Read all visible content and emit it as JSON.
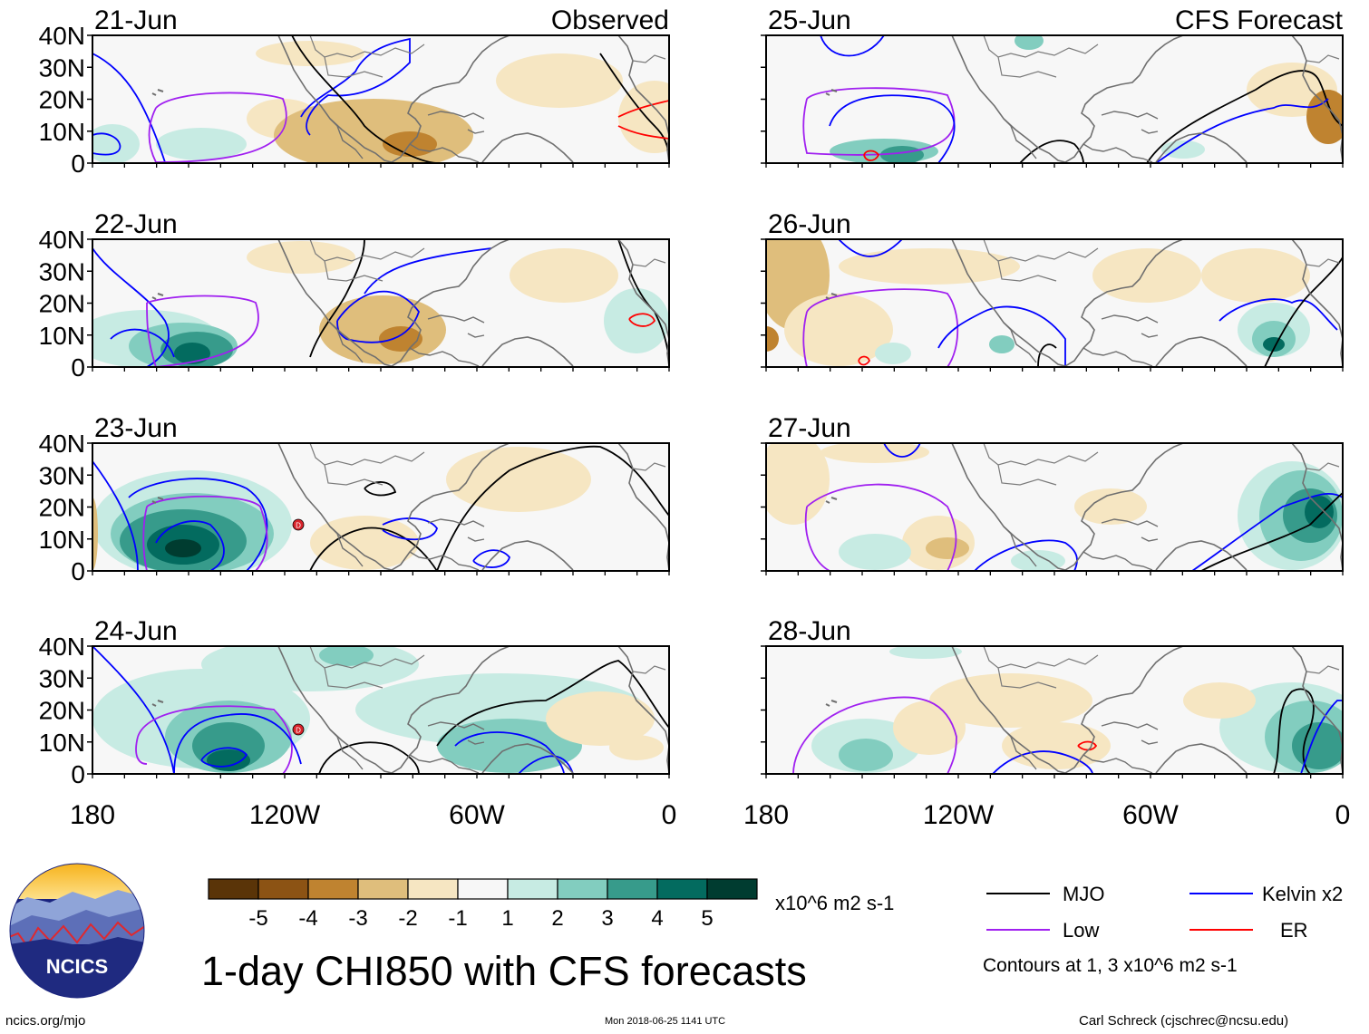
{
  "panels": [
    {
      "date": "21-Jun",
      "label": "Observed"
    },
    {
      "date": "25-Jun",
      "label": "CFS Forecast"
    },
    {
      "date": "22-Jun",
      "label": ""
    },
    {
      "date": "26-Jun",
      "label": ""
    },
    {
      "date": "23-Jun",
      "label": ""
    },
    {
      "date": "27-Jun",
      "label": ""
    },
    {
      "date": "24-Jun",
      "label": ""
    },
    {
      "date": "28-Jun",
      "label": ""
    }
  ],
  "lat_ticks": [
    "40N",
    "30N",
    "20N",
    "10N",
    "0"
  ],
  "lon_ticks": [
    "180",
    "120W",
    "60W",
    "0"
  ],
  "colorbar": {
    "colors": [
      "#5a3408",
      "#8c5314",
      "#bf8330",
      "#dfbe7c",
      "#f6e6c2",
      "#f7f7f7",
      "#c7ebe3",
      "#82cdbf",
      "#379b8b",
      "#036b5f",
      "#003c30"
    ],
    "tick_labels": [
      "-5",
      "-4",
      "-3",
      "-2",
      "-1",
      "1",
      "2",
      "3",
      "4",
      "5"
    ],
    "units": "x10^6 m2 s-1"
  },
  "contour_legend": [
    {
      "label": "MJO",
      "color": "#000000"
    },
    {
      "label": "Kelvin x2",
      "color": "#0000ff"
    },
    {
      "label": "Low",
      "color": "#a020f0"
    },
    {
      "label": "ER",
      "color": "#ff0000"
    }
  ],
  "contours_note": "Contours at 1, 3 x10^6 m2 s-1",
  "title": "1-day CHI850 with CFS forecasts",
  "logo_text": "NCICS",
  "footer": {
    "url": "ncics.org/mjo",
    "timestamp": "Mon 2018-06-25 1141 UTC",
    "credit": "Carl Schreck (cjschrec@ncsu.edu)"
  }
}
